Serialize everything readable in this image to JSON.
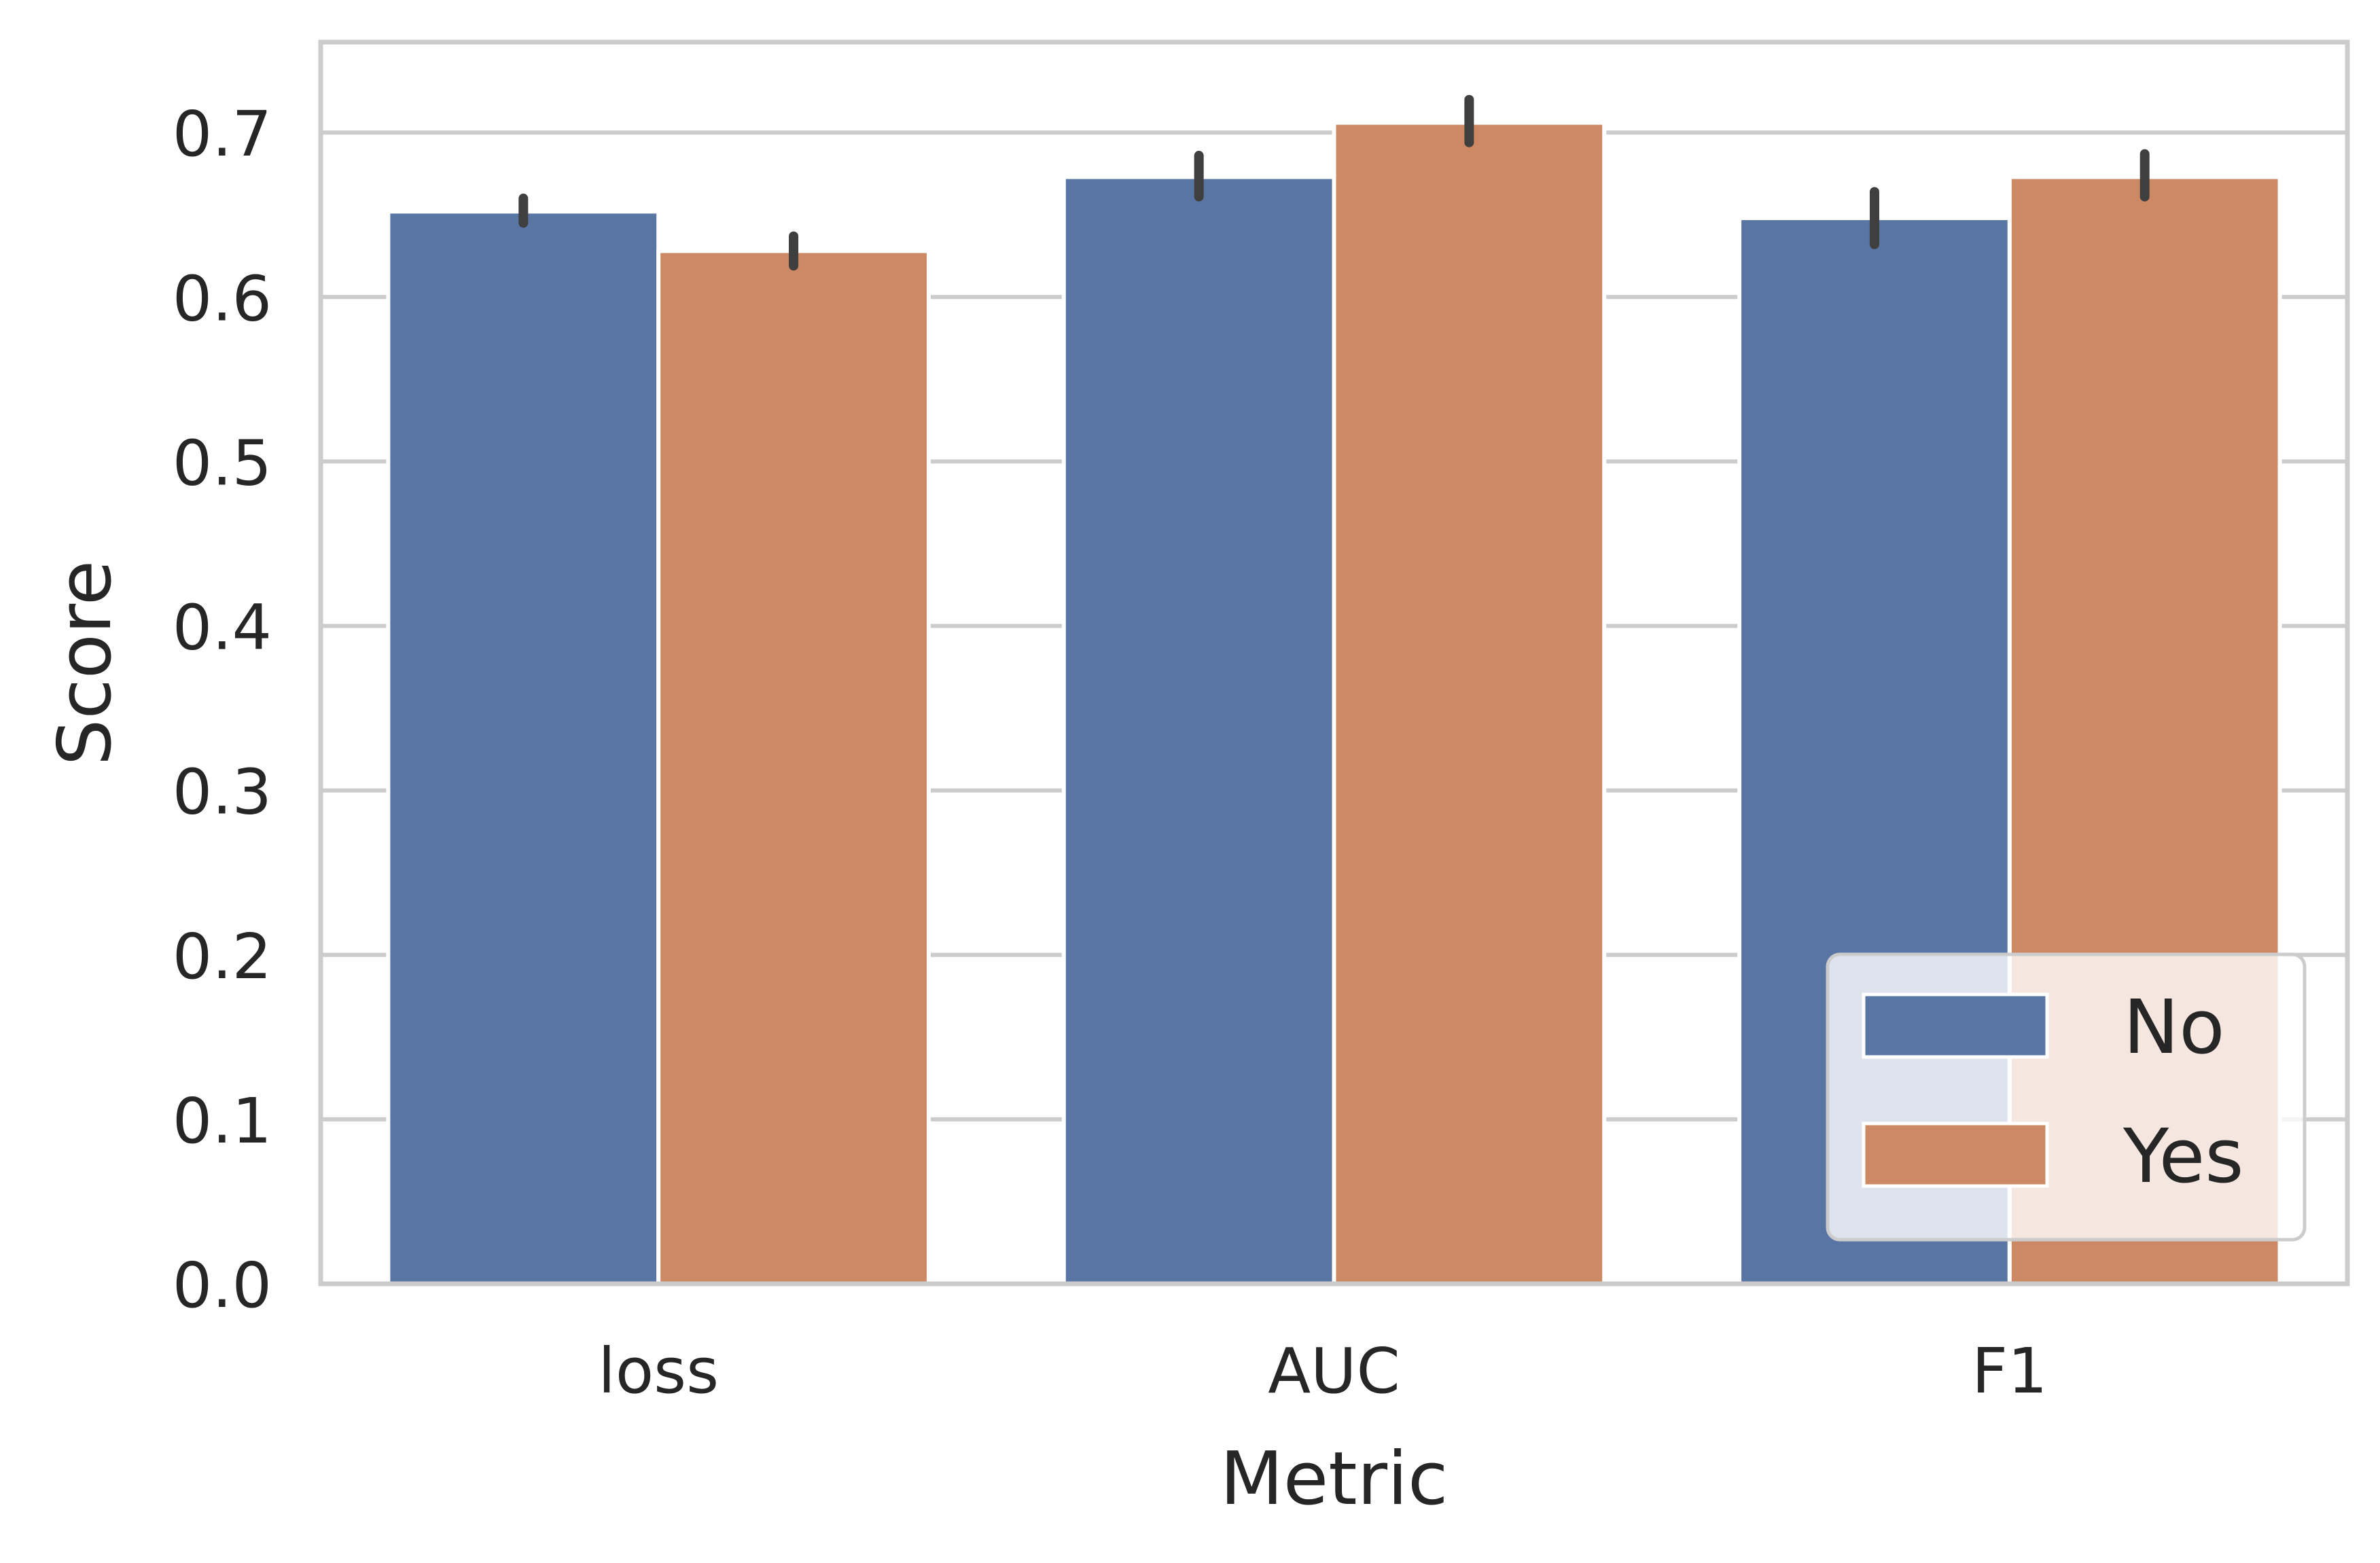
{
  "chart_data": {
    "type": "bar",
    "xlabel": "Metric",
    "ylabel": "Score",
    "categories": [
      "loss",
      "AUC",
      "F1"
    ],
    "series": [
      {
        "name": "No",
        "color": "#5975a4",
        "values": [
          0.652,
          0.673,
          0.648
        ],
        "error": [
          [
            0.645,
            0.66
          ],
          [
            0.661,
            0.686
          ],
          [
            0.632,
            0.664
          ]
        ]
      },
      {
        "name": "Yes",
        "color": "#cc8963",
        "values": [
          0.628,
          0.706,
          0.673
        ],
        "error": [
          [
            0.619,
            0.637
          ],
          [
            0.694,
            0.72
          ],
          [
            0.661,
            0.687
          ]
        ]
      }
    ],
    "ylim": [
      0,
      0.755
    ],
    "yticks": [
      0.0,
      0.1,
      0.2,
      0.3,
      0.4,
      0.5,
      0.6,
      0.7
    ],
    "ytick_labels": [
      "0.0",
      "0.1",
      "0.2",
      "0.3",
      "0.4",
      "0.5",
      "0.6",
      "0.7"
    ],
    "grid": true,
    "legend_position": "lower-right",
    "error_bar_color": "#3f3f3f",
    "grid_color": "#cccccc"
  }
}
